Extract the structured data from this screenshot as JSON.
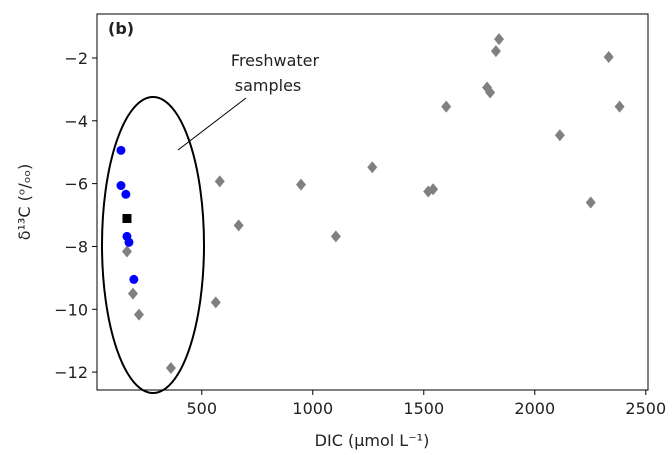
{
  "chart_data": {
    "type": "scatter",
    "panel_label": "(b)",
    "xlabel": "DIC (μmol L⁻¹)",
    "ylabel": "δ¹³C (ᵒ/ₒₒ)",
    "annotation": [
      "Freshwater",
      "samples"
    ],
    "xlim": [
      28,
      2510
    ],
    "ylim": [
      -12.57,
      -0.6
    ],
    "xticks": [
      500,
      1000,
      1500,
      2000,
      2500
    ],
    "yticks": [
      {
        "value": -2,
        "label": "−2"
      },
      {
        "value": -4,
        "label": "−4"
      },
      {
        "value": -6,
        "label": "−6"
      },
      {
        "value": -8,
        "label": "−8"
      },
      {
        "value": -10,
        "label": "−10"
      },
      {
        "value": -12,
        "label": "−12"
      }
    ],
    "series": [
      {
        "color": "#808080",
        "marker": "diamond",
        "x": [
          163,
          190,
          217,
          361,
          563,
          581,
          666,
          947,
          1104,
          1268,
          1520,
          1542,
          1601,
          1785,
          1799,
          1825,
          1839,
          2113,
          2252,
          2333,
          2382
        ],
        "values": [
          -8.16,
          -9.5,
          -10.17,
          -11.87,
          -9.78,
          -5.93,
          -7.33,
          -6.03,
          -7.68,
          -5.48,
          -6.25,
          -6.18,
          -3.55,
          -2.94,
          -3.1,
          -1.78,
          -1.4,
          -4.46,
          -6.6,
          -1.97,
          -3.55
        ]
      },
      {
        "color": "#0000ff",
        "marker": "circle",
        "x": [
          136,
          136,
          158,
          163,
          172,
          194
        ],
        "values": [
          -4.94,
          -6.06,
          -6.34,
          -7.68,
          -7.87,
          -9.05
        ]
      },
      {
        "color": "#000000",
        "marker": "square",
        "x": [
          163
        ],
        "values": [
          -7.11
        ]
      }
    ]
  }
}
